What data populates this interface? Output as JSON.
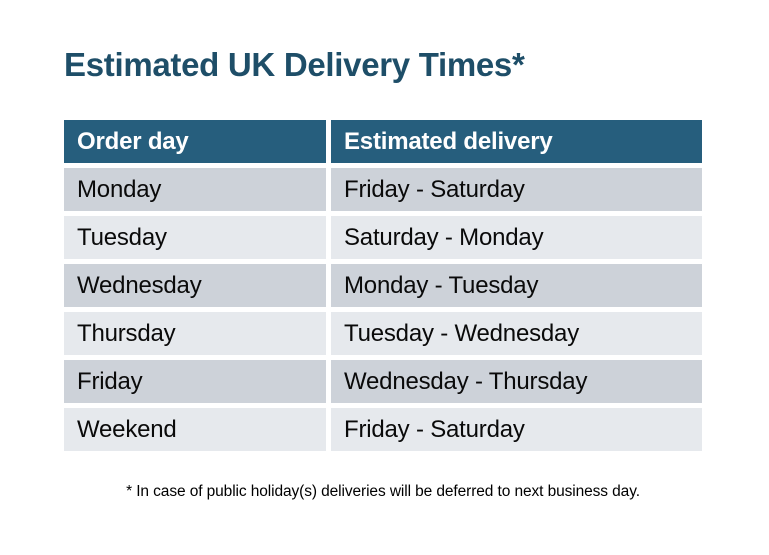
{
  "page_title": "Estimated UK Delivery Times*",
  "table": {
    "columns": [
      "Order day",
      "Estimated delivery"
    ],
    "rows": [
      {
        "order_day": "Monday",
        "estimated_delivery": "Friday - Saturday"
      },
      {
        "order_day": "Tuesday",
        "estimated_delivery": "Saturday - Monday"
      },
      {
        "order_day": "Wednesday",
        "estimated_delivery": "Monday - Tuesday"
      },
      {
        "order_day": "Thursday",
        "estimated_delivery": "Tuesday - Wednesday"
      },
      {
        "order_day": "Friday",
        "estimated_delivery": "Wednesday - Thursday"
      },
      {
        "order_day": "Weekend",
        "estimated_delivery": "Friday - Saturday"
      }
    ]
  },
  "footnote": "* In case of public holiday(s) deliveries will be deferred to next business day.",
  "colors": {
    "title_text": "#1E4E68",
    "header_bg": "#265E7D",
    "header_text": "#FFFFFF",
    "row_dark": "#CDD2D9",
    "row_light": "#E6E9ED",
    "body_text": "#0A0A0A",
    "background": "#FFFFFF"
  }
}
